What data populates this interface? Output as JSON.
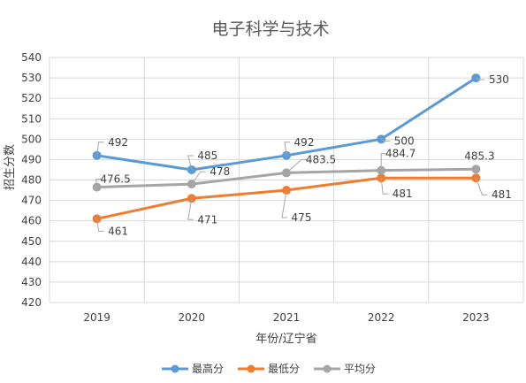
{
  "chart_data": {
    "type": "line",
    "title": "电子科学与技术",
    "xlabel": "年份/辽宁省",
    "ylabel": "招生分数",
    "categories": [
      "2019",
      "2020",
      "2021",
      "2022",
      "2023"
    ],
    "ylim": [
      420,
      540
    ],
    "ytick_step": 10,
    "grid": true,
    "legend_position": "bottom",
    "series": [
      {
        "name": "最高分",
        "color": "#5B9BD5",
        "values": [
          492,
          485,
          492,
          500,
          530
        ],
        "labels": [
          "492",
          "485",
          "492",
          "500",
          "530"
        ]
      },
      {
        "name": "最低分",
        "color": "#ED7D31",
        "values": [
          461,
          471,
          475,
          481,
          481
        ],
        "labels": [
          "461",
          "471",
          "475",
          "481",
          "481"
        ]
      },
      {
        "name": "平均分",
        "color": "#A5A5A5",
        "values": [
          476.5,
          478,
          483.5,
          484.7,
          485.3
        ],
        "labels": [
          "476.5",
          "478",
          "483.5",
          "484.7",
          "485.3"
        ]
      }
    ]
  }
}
